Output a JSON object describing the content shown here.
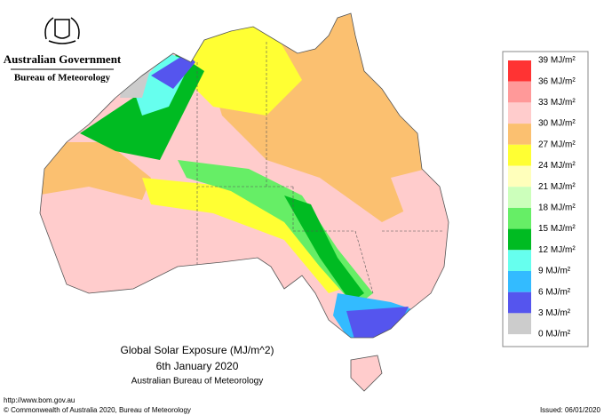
{
  "header": {
    "agency": "Australian Government",
    "bureau": "Bureau of Meteorology"
  },
  "map": {
    "title": "Global Solar Exposure (MJ/m^2)",
    "date": "6th January 2020",
    "source": "Australian Bureau of Meteorology"
  },
  "legend": {
    "labels": [
      "39 MJ/m²",
      "36 MJ/m²",
      "33 MJ/m²",
      "30 MJ/m²",
      "27 MJ/m²",
      "24 MJ/m²",
      "21 MJ/m²",
      "18 MJ/m²",
      "15 MJ/m²",
      "12 MJ/m²",
      "9 MJ/m²",
      "6 MJ/m²",
      "3 MJ/m²",
      "0 MJ/m²"
    ],
    "colors": [
      "#ff3333",
      "#ff9999",
      "#ffcccc",
      "#fbc070",
      "#ffff33",
      "#ffffbb",
      "#ccffbb",
      "#66ee66",
      "#00bb22",
      "#66ffee",
      "#33bbff",
      "#5555ee",
      "#cccccc"
    ]
  },
  "footer": {
    "url": "http://www.bom.gov.au",
    "copyright": "© Commonwealth of Australia 2020, Bureau of Meteorology",
    "issued": "Issued: 06/01/2020"
  }
}
